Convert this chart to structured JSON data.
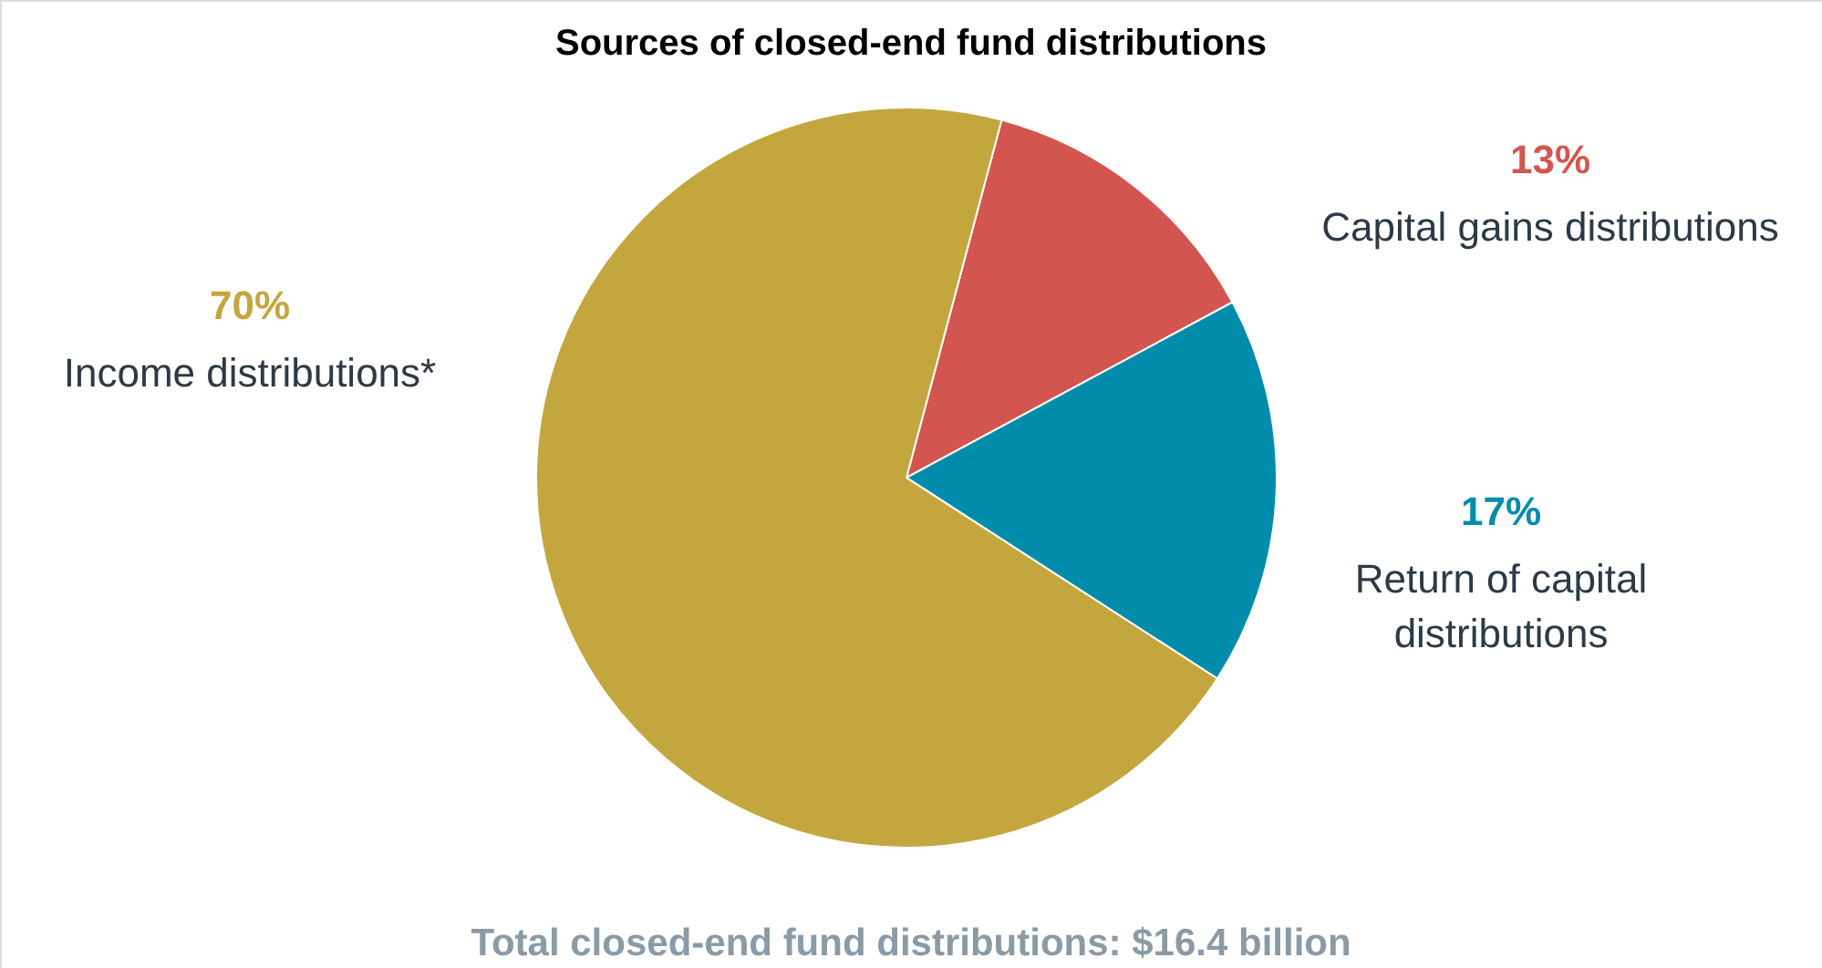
{
  "chart_data": {
    "type": "pie",
    "title": "Sources of closed-end fund distributions",
    "categories": [
      "Capital gains distributions",
      "Return of capital distributions",
      "Income distributions*"
    ],
    "values": [
      13,
      17,
      70
    ],
    "colors": [
      "#d2564f",
      "#008caa",
      "#c4a63f"
    ],
    "value_labels": [
      "13%",
      "17%",
      "70%"
    ],
    "annotations": [
      "Total closed-end fund distributions: $16.4 billion"
    ]
  }
}
